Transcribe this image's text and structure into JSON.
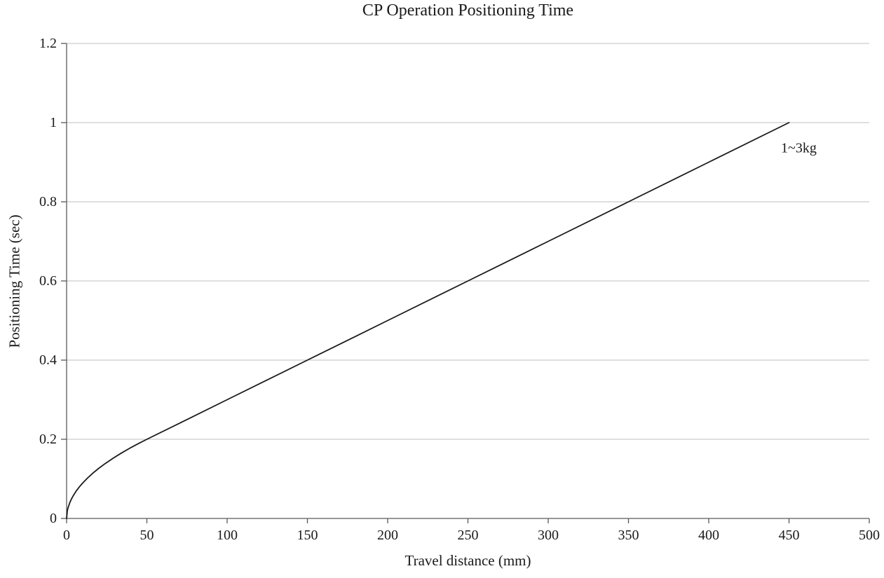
{
  "chart": {
    "title": "CP Operation Positioning Time",
    "xlabel": "Travel distance (mm)",
    "ylabel": "Positioning Time (sec)"
  },
  "colors": {
    "background": "#ffffff",
    "grid": "#bfbfbf",
    "axis": "#595959",
    "text": "#1a1a1a",
    "line": "#1a1a1a"
  },
  "chart_data": {
    "type": "line",
    "title": "CP Operation Positioning Time",
    "xlabel": "Travel distance (mm)",
    "ylabel": "Positioning Time (sec)",
    "xlim": [
      0,
      500
    ],
    "ylim": [
      0,
      1.2
    ],
    "grid": "horizontal",
    "legend_position": "annotation-on-line",
    "x_ticks": [
      0,
      50,
      100,
      150,
      200,
      250,
      300,
      350,
      400,
      450,
      500
    ],
    "x_tick_labels": [
      "0",
      "50",
      "100",
      "150",
      "200",
      "250",
      "300",
      "350",
      "400",
      "450",
      "500"
    ],
    "y_ticks": [
      0,
      0.2,
      0.4,
      0.6,
      0.8,
      1.0,
      1.2
    ],
    "y_tick_labels": [
      "0",
      "0.2",
      "0.4",
      "0.6",
      "0.8",
      "1",
      "1.2"
    ],
    "series": [
      {
        "name": "1~3kg",
        "color": "#1a1a1a",
        "label": {
          "x": 445,
          "y": 0.935
        },
        "x": [
          0,
          0.5,
          1,
          2,
          3,
          4,
          6,
          8,
          10,
          13,
          16,
          20,
          24,
          29,
          34,
          40,
          45,
          50,
          75,
          100,
          150,
          200,
          250,
          300,
          350,
          400,
          450
        ],
        "y": [
          0,
          0.02,
          0.0283,
          0.04,
          0.049,
          0.0566,
          0.0693,
          0.08,
          0.0894,
          0.102,
          0.1131,
          0.1265,
          0.1386,
          0.1523,
          0.1649,
          0.1789,
          0.1897,
          0.2,
          0.25,
          0.3,
          0.4,
          0.5,
          0.6,
          0.7,
          0.8,
          0.9,
          1.0
        ]
      }
    ]
  }
}
